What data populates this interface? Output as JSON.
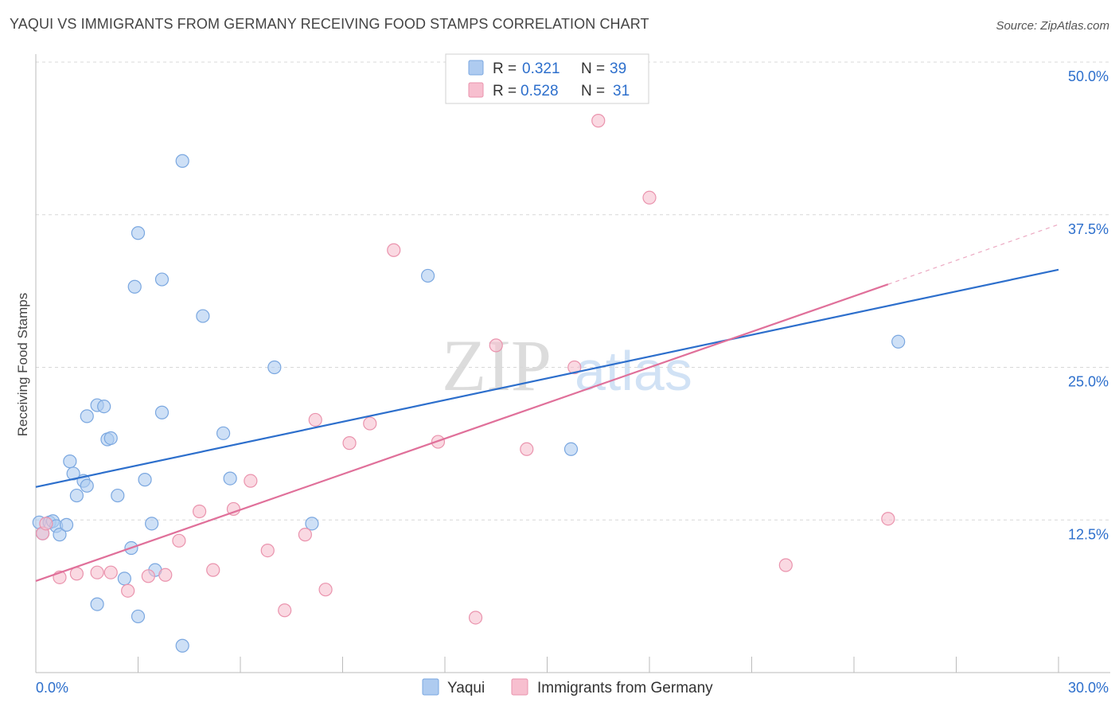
{
  "header": {
    "title": "YAQUI VS IMMIGRANTS FROM GERMANY RECEIVING FOOD STAMPS CORRELATION CHART",
    "source": "Source: ZipAtlas.com"
  },
  "watermark": {
    "zip": "ZIP",
    "atlas": "atlas"
  },
  "stats_legend": [
    {
      "r_label": "R =",
      "r_value": "0.321",
      "n_label": "N =",
      "n_value": "39"
    },
    {
      "r_label": "R =",
      "r_value": "0.528",
      "n_label": "N =",
      "n_value": "31"
    }
  ],
  "colors": {
    "yaqui_fill": "#aecbf0",
    "yaqui_stroke": "#7aa7e0",
    "yaqui_line": "#2d6fcc",
    "germany_fill": "#f7bfcf",
    "germany_stroke": "#ea93ad",
    "germany_line": "#e0709a",
    "value_text": "#2d6fcc",
    "grid": "#d8d8d8"
  },
  "chart_data": {
    "type": "scatter",
    "xlabel": "",
    "ylabel": "Receiving Food Stamps",
    "xlim": [
      0,
      30
    ],
    "ylim": [
      0,
      50
    ],
    "x_tick_labels": [
      "0.0%",
      "30.0%"
    ],
    "y_tick_labels": [
      "12.5%",
      "25.0%",
      "37.5%",
      "50.0%"
    ],
    "y_ticks": [
      12.5,
      25,
      37.5,
      50
    ],
    "grid": true,
    "legend_position": "bottom",
    "series": [
      {
        "name": "Yaqui",
        "trend": {
          "x": [
            0,
            30
          ],
          "y": [
            15.2,
            33.0
          ],
          "dashed_from": null
        },
        "points": [
          [
            0.1,
            12.3
          ],
          [
            0.2,
            11.4
          ],
          [
            0.4,
            12.3
          ],
          [
            0.5,
            12.4
          ],
          [
            0.6,
            12.0
          ],
          [
            0.7,
            11.3
          ],
          [
            0.9,
            12.1
          ],
          [
            1.0,
            17.3
          ],
          [
            1.1,
            16.3
          ],
          [
            1.2,
            14.5
          ],
          [
            1.4,
            15.7
          ],
          [
            1.5,
            15.3
          ],
          [
            1.5,
            21.0
          ],
          [
            1.8,
            21.9
          ],
          [
            2.0,
            21.8
          ],
          [
            2.1,
            19.1
          ],
          [
            2.2,
            19.2
          ],
          [
            2.4,
            14.5
          ],
          [
            2.6,
            7.7
          ],
          [
            2.8,
            10.2
          ],
          [
            2.9,
            31.6
          ],
          [
            3.0,
            36.0
          ],
          [
            3.2,
            15.8
          ],
          [
            3.4,
            12.2
          ],
          [
            3.5,
            8.4
          ],
          [
            3.7,
            21.3
          ],
          [
            3.7,
            32.2
          ],
          [
            4.3,
            41.9
          ],
          [
            4.3,
            2.2
          ],
          [
            4.9,
            29.2
          ],
          [
            5.5,
            19.6
          ],
          [
            5.7,
            15.9
          ],
          [
            7.0,
            25.0
          ],
          [
            8.1,
            12.2
          ],
          [
            11.5,
            32.5
          ],
          [
            15.7,
            18.3
          ],
          [
            25.3,
            27.1
          ],
          [
            3.0,
            4.6
          ],
          [
            1.8,
            5.6
          ]
        ]
      },
      {
        "name": "Immigrants from Germany",
        "trend": {
          "x": [
            0,
            25
          ],
          "y": [
            7.5,
            31.8
          ],
          "dashed_from": 25,
          "dashed_to": {
            "x": 30,
            "y": 36.7
          }
        },
        "points": [
          [
            0.2,
            11.4
          ],
          [
            0.3,
            12.2
          ],
          [
            0.7,
            7.8
          ],
          [
            1.2,
            8.1
          ],
          [
            1.8,
            8.2
          ],
          [
            2.2,
            8.2
          ],
          [
            2.7,
            6.7
          ],
          [
            3.3,
            7.9
          ],
          [
            3.8,
            8.0
          ],
          [
            4.2,
            10.8
          ],
          [
            4.8,
            13.2
          ],
          [
            5.2,
            8.4
          ],
          [
            5.8,
            13.4
          ],
          [
            6.3,
            15.7
          ],
          [
            6.8,
            10.0
          ],
          [
            7.3,
            5.1
          ],
          [
            7.9,
            11.3
          ],
          [
            8.2,
            20.7
          ],
          [
            8.5,
            6.8
          ],
          [
            9.2,
            18.8
          ],
          [
            9.8,
            20.4
          ],
          [
            10.5,
            34.6
          ],
          [
            11.8,
            18.9
          ],
          [
            12.9,
            4.5
          ],
          [
            13.5,
            26.8
          ],
          [
            14.4,
            18.3
          ],
          [
            15.8,
            25.0
          ],
          [
            16.5,
            45.2
          ],
          [
            18.0,
            38.9
          ],
          [
            22.0,
            8.8
          ],
          [
            25.0,
            12.6
          ]
        ]
      }
    ]
  }
}
